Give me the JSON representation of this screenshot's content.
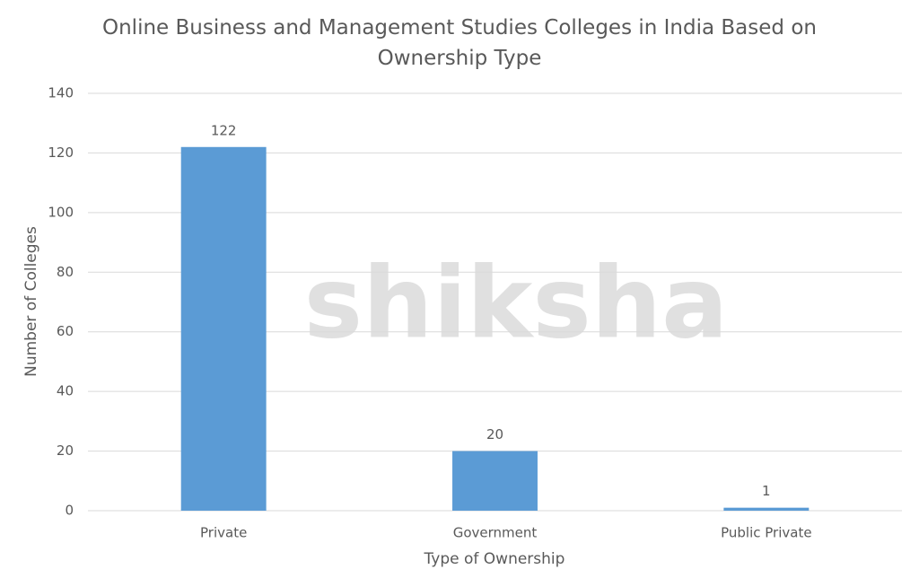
{
  "chart_data": {
    "type": "bar",
    "title": "Online Business and Management Studies Colleges in India Based on Ownership Type",
    "watermark": "shiksha",
    "x_label": "Type of Ownership",
    "y_label": "Number of Colleges",
    "categories": [
      "Private",
      "Government",
      "Public Private"
    ],
    "values": [
      122,
      20,
      1
    ],
    "color": "#5b9bd5",
    "ylim": [
      0,
      140
    ],
    "yticks": [
      0,
      20,
      40,
      60,
      80,
      100,
      120,
      140
    ],
    "grid": true
  }
}
